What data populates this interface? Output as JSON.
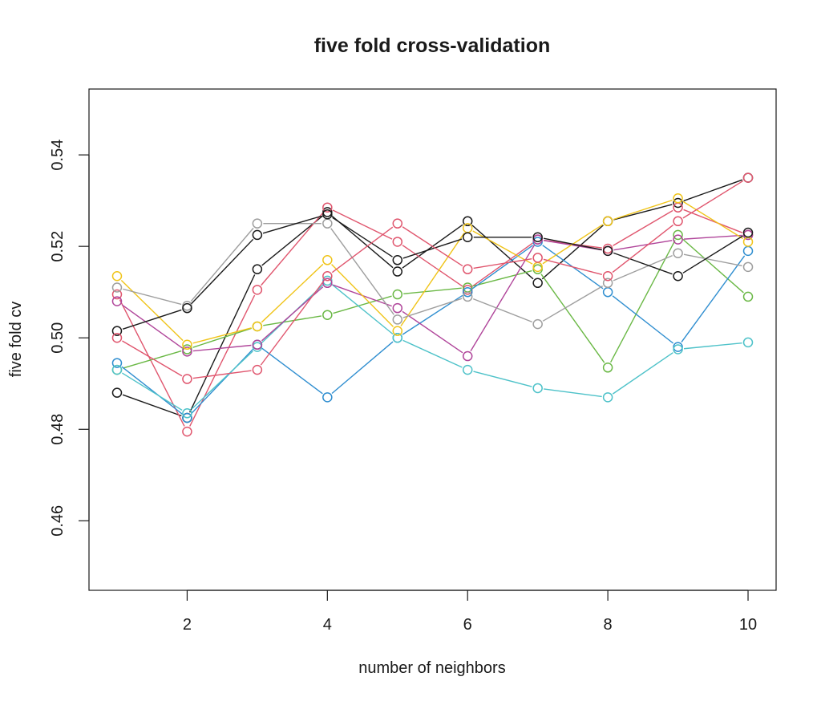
{
  "chart_data": {
    "type": "line",
    "title": "five fold cross-validation",
    "xlabel": "number of neighbors",
    "ylabel": "five fold cv",
    "xlim": [
      0.6,
      10.4
    ],
    "ylim": [
      0.4448,
      0.5544
    ],
    "x": [
      1,
      2,
      3,
      4,
      5,
      6,
      7,
      8,
      9,
      10
    ],
    "xticks": [
      2,
      4,
      6,
      8,
      10
    ],
    "yticks": [
      0.46,
      0.48,
      0.5,
      0.52,
      0.54
    ],
    "ytick_labels": [
      "0.46",
      "0.48",
      "0.50",
      "0.52",
      "0.54"
    ],
    "grid": false,
    "legend": "none",
    "markers": "open-circle",
    "series": [
      {
        "color": "#1a1a1a",
        "values": [
          0.488,
          0.4825,
          0.515,
          0.5275,
          0.5145,
          0.5255,
          0.512,
          0.5255,
          0.5295,
          0.535
        ]
      },
      {
        "color": "#e0566e",
        "values": [
          0.5095,
          0.4795,
          0.5105,
          0.5285,
          0.521,
          0.5105,
          0.5215,
          0.5195,
          0.5285,
          0.5225
        ]
      },
      {
        "color": "#6ab845",
        "values": [
          0.493,
          0.4975,
          0.5025,
          0.505,
          0.5095,
          0.511,
          0.515,
          0.4935,
          0.5225,
          0.509
        ]
      },
      {
        "color": "#2f8ed0",
        "values": [
          0.4945,
          0.4825,
          0.4985,
          0.487,
          0.5,
          0.51,
          0.521,
          0.51,
          0.498,
          0.519
        ]
      },
      {
        "color": "#4ec2c9",
        "values": [
          0.493,
          0.4835,
          0.498,
          0.5125,
          0.5,
          0.493,
          0.489,
          0.487,
          0.4975,
          0.499
        ]
      },
      {
        "color": "#b0459a",
        "values": [
          0.508,
          0.497,
          0.4985,
          0.512,
          0.5065,
          0.496,
          0.5215,
          0.519,
          0.5215,
          0.5225
        ]
      },
      {
        "color": "#f0c419",
        "values": [
          0.5135,
          0.4985,
          0.5025,
          0.517,
          0.5015,
          0.524,
          0.5155,
          0.5255,
          0.5305,
          0.521
        ]
      },
      {
        "color": "#9e9e9e",
        "values": [
          0.511,
          0.507,
          0.525,
          0.525,
          0.504,
          0.509,
          0.503,
          0.512,
          0.5185,
          0.5155
        ]
      },
      {
        "color": "#1a1a1a",
        "values": [
          0.5015,
          0.5065,
          0.5225,
          0.527,
          0.517,
          0.522,
          0.522,
          0.519,
          0.5135,
          0.523
        ]
      },
      {
        "color": "#e0566e",
        "values": [
          0.5,
          0.491,
          0.493,
          0.5135,
          0.525,
          0.515,
          0.5175,
          0.5135,
          0.5255,
          0.535
        ]
      }
    ]
  }
}
